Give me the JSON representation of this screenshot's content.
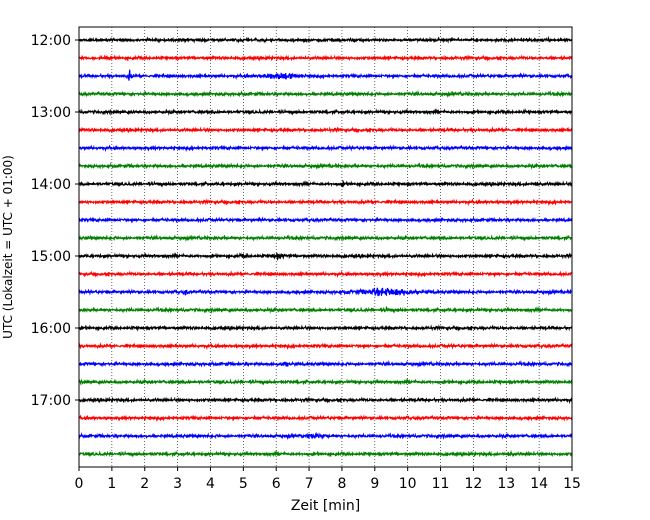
{
  "chart_data": {
    "type": "line",
    "title": "",
    "xlabel": "Zeit  [min]",
    "ylabel": "UTC (Lokalzeit = UTC + 01:00)",
    "xlim": [
      0,
      15
    ],
    "x_ticks": [
      "0",
      "1",
      "2",
      "3",
      "4",
      "5",
      "6",
      "7",
      "8",
      "9",
      "10",
      "11",
      "12",
      "13",
      "14",
      "15"
    ],
    "y_ticks": [
      "12:00",
      "13:00",
      "14:00",
      "15:00",
      "16:00",
      "17:00"
    ],
    "grid": "vertical-dotted",
    "trace_colors": [
      "#000000",
      "#ff0000",
      "#0000ff",
      "#008000"
    ],
    "series": [
      {
        "start": "12:00"
      },
      {
        "start": "12:15"
      },
      {
        "start": "12:30"
      },
      {
        "start": "12:45"
      },
      {
        "start": "13:00"
      },
      {
        "start": "13:15"
      },
      {
        "start": "13:30"
      },
      {
        "start": "13:45"
      },
      {
        "start": "14:00"
      },
      {
        "start": "14:15"
      },
      {
        "start": "14:30"
      },
      {
        "start": "14:45"
      },
      {
        "start": "15:00"
      },
      {
        "start": "15:15"
      },
      {
        "start": "15:30"
      },
      {
        "start": "15:45"
      },
      {
        "start": "16:00"
      },
      {
        "start": "16:15"
      },
      {
        "start": "16:30"
      },
      {
        "start": "16:45"
      },
      {
        "start": "17:00"
      },
      {
        "start": "17:15"
      },
      {
        "start": "17:30"
      },
      {
        "start": "17:45"
      }
    ]
  }
}
